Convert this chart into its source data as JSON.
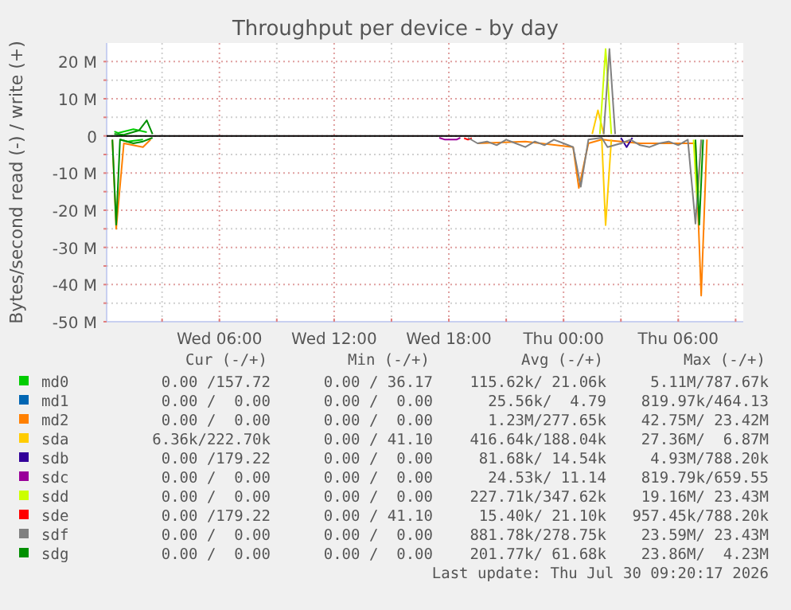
{
  "chart_data": {
    "type": "line",
    "title": "Throughput per device - by day",
    "ylabel": "Bytes/second read (-) / write (+)",
    "xlim": [
      "2026-07-29T00:06",
      "2026-07-30T09:24"
    ],
    "xticks": [
      {
        "value": "2026-07-29T03:00",
        "label": null
      },
      {
        "value": "2026-07-29T06:00",
        "label": "Wed 06:00"
      },
      {
        "value": "2026-07-29T09:00",
        "label": null
      },
      {
        "value": "2026-07-29T12:00",
        "label": "Wed 12:00"
      },
      {
        "value": "2026-07-29T15:00",
        "label": null
      },
      {
        "value": "2026-07-29T18:00",
        "label": "Wed 18:00"
      },
      {
        "value": "2026-07-29T21:00",
        "label": null
      },
      {
        "value": "2026-07-30T00:00",
        "label": "Thu 00:00"
      },
      {
        "value": "2026-07-30T03:00",
        "label": null
      },
      {
        "value": "2026-07-30T06:00",
        "label": "Thu 06:00"
      },
      {
        "value": "2026-07-30T09:00",
        "label": null
      }
    ],
    "ylim": [
      -50,
      25
    ],
    "yticks": [
      {
        "value": -50,
        "label": "-50 M"
      },
      {
        "value": -45,
        "label": null
      },
      {
        "value": -40,
        "label": "-40 M"
      },
      {
        "value": -35,
        "label": null
      },
      {
        "value": -30,
        "label": "-30 M"
      },
      {
        "value": -25,
        "label": null
      },
      {
        "value": -20,
        "label": "-20 M"
      },
      {
        "value": -15,
        "label": null
      },
      {
        "value": -10,
        "label": "-10 M"
      },
      {
        "value": -5,
        "label": null
      },
      0,
      {
        "value": 5,
        "label": null
      },
      {
        "value": 10,
        "label": "10 M"
      },
      {
        "value": 15,
        "label": null
      },
      {
        "value": 20,
        "label": "20 M"
      }
    ],
    "grid": true,
    "legend": "bottom",
    "ref_lines": [
      {
        "axis": "y",
        "value": 0,
        "color": "#000000"
      }
    ],
    "series": [
      {
        "name": "md0",
        "color": "#00cc00",
        "x": [
          "2026-07-29T00:30",
          "2026-07-29T00:42",
          "2026-07-29T01:30",
          "2026-07-29T02:12"
        ],
        "values": [
          1.2,
          0.8,
          1.8,
          1
        ]
      },
      {
        "name": "md1",
        "color": "#0066b3"
      },
      {
        "name": "md2",
        "color": "#ff8000"
      },
      {
        "name": "sda",
        "color": "#ffcc00",
        "x": [
          "2026-07-30T01:30",
          "2026-07-30T01:48",
          "2026-07-30T02:06"
        ],
        "values": [
          0.5,
          6.9,
          0.5
        ]
      },
      {
        "name": "sdb",
        "color": "#330099"
      },
      {
        "name": "sdc",
        "color": "#990099"
      },
      {
        "name": "sdd",
        "color": "#ccff00",
        "x": [
          "2026-07-30T01:54",
          "2026-07-30T02:12",
          "2026-07-30T02:30"
        ],
        "values": [
          0.5,
          23.4,
          0.5
        ]
      },
      {
        "name": "sde",
        "color": "#ff0000"
      },
      {
        "name": "sdf",
        "color": "#808080",
        "x": [
          "2026-07-30T02:06",
          "2026-07-30T02:24",
          "2026-07-30T02:42"
        ],
        "values": [
          0.5,
          23.4,
          0.5
        ]
      },
      {
        "name": "sdg",
        "color": "#008f00",
        "x": [
          "2026-07-29T00:30",
          "2026-07-29T01:00",
          "2026-07-29T01:48",
          "2026-07-29T02:12",
          "2026-07-29T02:30"
        ],
        "values": [
          0.5,
          0.3,
          1.5,
          4.2,
          0.5
        ]
      },
      {
        "color": "#00cc00",
        "x": [
          "2026-07-29T00:48",
          "2026-07-29T01:12",
          "2026-07-29T02:00"
        ],
        "values": [
          -1,
          -1.5,
          -1
        ]
      },
      {
        "color": "#ff8000",
        "x": [
          "2026-07-29T00:24",
          "2026-07-29T00:36",
          "2026-07-29T01:00",
          "2026-07-29T02:00",
          "2026-07-29T02:24",
          "2026-07-29T03:00",
          "2026-07-29T19:30",
          "2026-07-29T22:00",
          "2026-07-30T00:30",
          "2026-07-30T00:48",
          "2026-07-30T01:18",
          "2026-07-30T02:00",
          "2026-07-30T04:00",
          "2026-07-30T06:54",
          "2026-07-30T07:12",
          "2026-07-30T07:30"
        ],
        "values": [
          -1,
          -25,
          -2,
          -3,
          -1,
          null,
          -2,
          -1.5,
          -3,
          -14,
          -2,
          -1,
          -2,
          -2,
          -43,
          -1
        ]
      },
      {
        "color": "#ffcc00",
        "x": [
          "2026-07-30T02:00",
          "2026-07-30T02:12",
          "2026-07-30T02:30"
        ],
        "values": [
          -1,
          -24,
          -1
        ]
      },
      {
        "color": "#330099",
        "x": [
          "2026-07-30T03:00",
          "2026-07-30T03:18",
          "2026-07-30T03:36"
        ],
        "values": [
          -0.5,
          -3,
          -0.5
        ]
      },
      {
        "color": "#990099",
        "x": [
          "2026-07-29T17:30",
          "2026-07-29T17:48",
          "2026-07-29T18:24",
          "2026-07-29T18:36"
        ],
        "values": [
          -0.5,
          -1,
          -1,
          -0.5
        ]
      },
      {
        "color": "#ccff00",
        "x": [
          "2026-07-30T06:48",
          "2026-07-30T07:00",
          "2026-07-30T07:12"
        ],
        "values": [
          -1,
          -19,
          -1
        ]
      },
      {
        "color": "#ff0000",
        "x": [
          "2026-07-29T18:48",
          "2026-07-29T19:00",
          "2026-07-29T19:12"
        ],
        "values": [
          -0.6,
          -1,
          -0.6
        ]
      },
      {
        "color": "#808080",
        "x": [
          "2026-07-29T19:00",
          "2026-07-29T19:30",
          "2026-07-29T20:00",
          "2026-07-29T20:30",
          "2026-07-29T21:00",
          "2026-07-29T21:30",
          "2026-07-29T22:00",
          "2026-07-29T22:30",
          "2026-07-29T23:00",
          "2026-07-29T23:30",
          "2026-07-30T00:00",
          "2026-07-30T00:30",
          "2026-07-30T00:54",
          "2026-07-30T01:18",
          "2026-07-30T02:00",
          "2026-07-30T02:18",
          "2026-07-30T03:00",
          "2026-07-30T03:30",
          "2026-07-30T04:00",
          "2026-07-30T04:30",
          "2026-07-30T05:00",
          "2026-07-30T05:30",
          "2026-07-30T06:00",
          "2026-07-30T06:30",
          "2026-07-30T06:54",
          "2026-07-30T07:12"
        ],
        "values": [
          -0.5,
          -2,
          -1.5,
          -2.5,
          -1,
          -2,
          -3,
          -1.5,
          -2.5,
          -1,
          -2,
          -3,
          -13.7,
          -1,
          -0.5,
          -3,
          -2,
          -1,
          -2.5,
          -3,
          -2,
          -1.5,
          -2.5,
          -1,
          -23.6,
          -1
        ]
      },
      {
        "color": "#008f00",
        "x": [
          "2026-07-29T00:24",
          "2026-07-29T00:36",
          "2026-07-29T00:48",
          "2026-07-29T01:30",
          "2026-07-29T02:00",
          "2026-07-29T02:30",
          "2026-07-29T03:00",
          "2026-07-30T06:54",
          "2026-07-30T07:06",
          "2026-07-30T07:18"
        ],
        "values": [
          -1,
          -23.9,
          -1,
          -2,
          -1.5,
          -0.5,
          null,
          -1,
          -23.9,
          -1
        ]
      }
    ],
    "annotations": [
      "Cur (-/+)",
      "Min (-/+)",
      "Avg (-/+)",
      "Max (-/+)",
      "0.00 /157.72",
      "0.00 / 36.17",
      "115.62k/ 21.06k",
      "5.11M/787.67k",
      "0.00 /  0.00",
      "0.00 /  0.00",
      "25.56k/  4.79",
      "819.97k/464.13",
      "0.00 /  0.00",
      "0.00 /  0.00",
      "1.23M/277.65k",
      "42.75M/ 23.42M",
      "6.36k/222.70k",
      "0.00 / 41.10",
      "416.64k/188.04k",
      "27.36M/  6.87M",
      "0.00 /179.22",
      "0.00 /  0.00",
      "81.68k/ 14.54k",
      "4.93M/788.20k",
      "0.00 /  0.00",
      "0.00 /  0.00",
      "24.53k/ 11.14",
      "819.79k/659.55",
      "0.00 /  0.00",
      "0.00 /  0.00",
      "227.71k/347.62k",
      "19.16M/ 23.43M",
      "0.00 /179.22",
      "0.00 / 41.10",
      "15.40k/ 21.10k",
      "957.45k/788.20k",
      "0.00 /  0.00",
      "0.00 /  0.00",
      "881.78k/278.75k",
      "23.59M/ 23.43M",
      "0.00 /  0.00",
      "0.00 /  0.00",
      "201.77k/ 61.68k",
      "23.86M/  4.23M",
      "Last update: Thu Jul 30 09:20:17 2026"
    ]
  }
}
